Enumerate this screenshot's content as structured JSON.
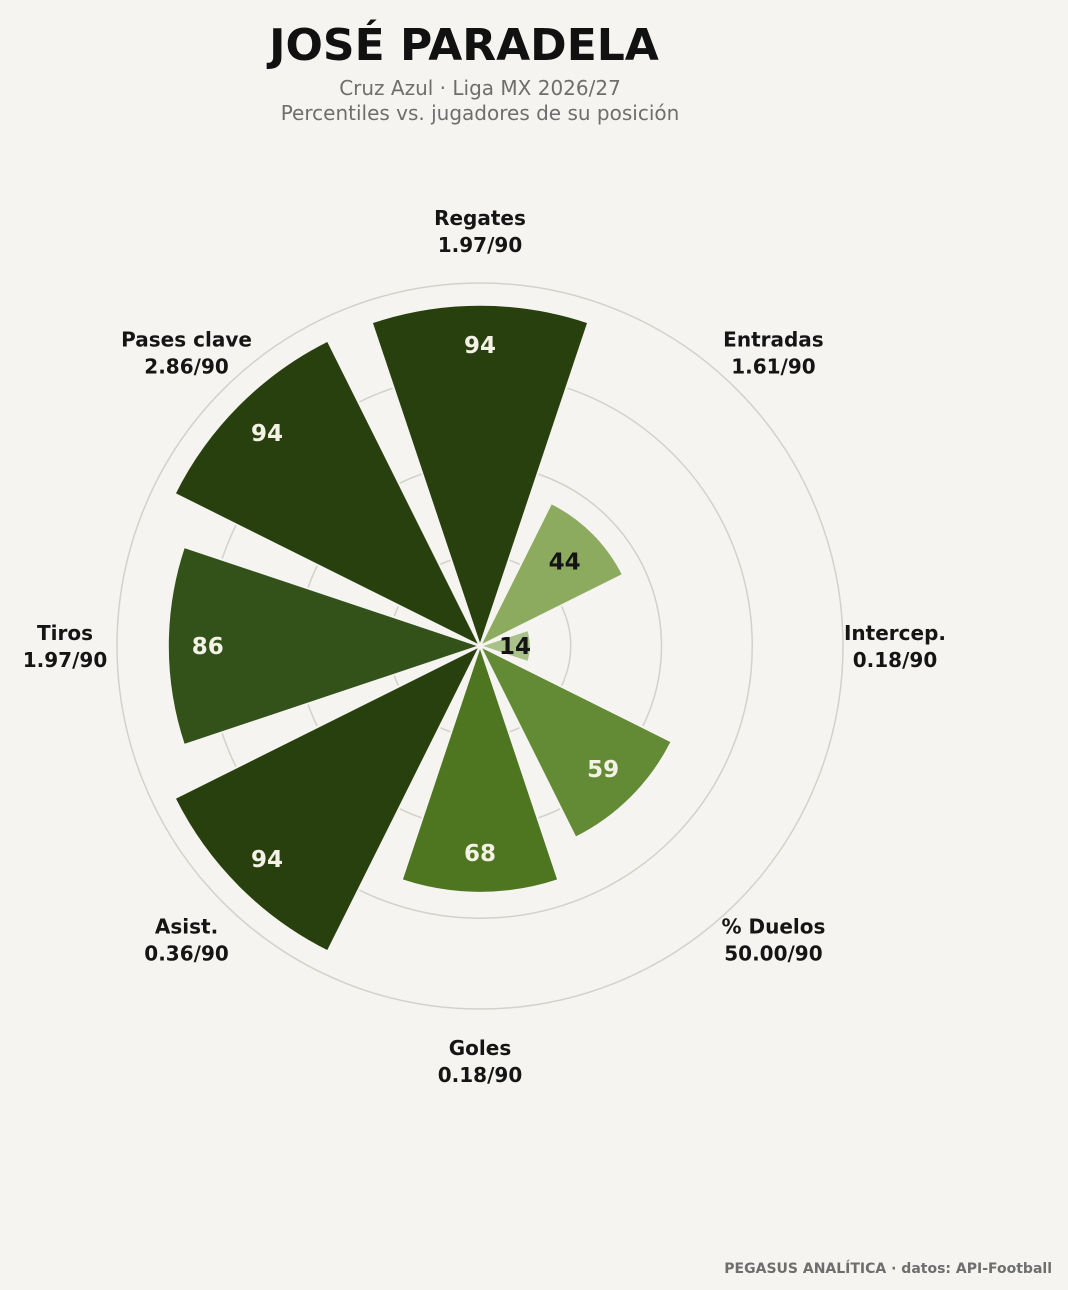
{
  "header": {
    "title": "JOSÉ PARADELA",
    "subtitle_line1": "Cruz Azul · Liga MX 2026/27",
    "subtitle_line2": "Percentiles vs. jugadores de su posición"
  },
  "footer": {
    "credit": "PEGASUS ANALÍTICA · datos: API-Football"
  },
  "colors": {
    "background": "#f5f4f0",
    "ring": "#d3d1cc",
    "scale": [
      "#a9c28a",
      "#8cab5e",
      "#638a35",
      "#4e7520",
      "#33521a",
      "#28400e"
    ]
  },
  "chart_data": {
    "type": "polar-bar",
    "title": "JOSÉ PARADELA",
    "subtitle": "Cruz Azul · Liga MX 2026/27 / Percentiles vs. jugadores de su posición",
    "rlim": [
      0,
      100
    ],
    "rings": [
      25,
      50,
      75,
      100
    ],
    "grid": true,
    "categories": [
      {
        "name": "Regates",
        "stat": "1.97/90",
        "percentile": 94
      },
      {
        "name": "Entradas",
        "stat": "1.61/90",
        "percentile": 44
      },
      {
        "name": "Intercep.",
        "stat": "0.18/90",
        "percentile": 14
      },
      {
        "name": "% Duelos",
        "stat": "50.00/90",
        "percentile": 59
      },
      {
        "name": "Goles",
        "stat": "0.18/90",
        "percentile": 68
      },
      {
        "name": "Asist.",
        "stat": "0.36/90",
        "percentile": 94
      },
      {
        "name": "Tiros",
        "stat": "1.97/90",
        "percentile": 86
      },
      {
        "name": "Pases clave",
        "stat": "2.86/90",
        "percentile": 94
      }
    ]
  }
}
